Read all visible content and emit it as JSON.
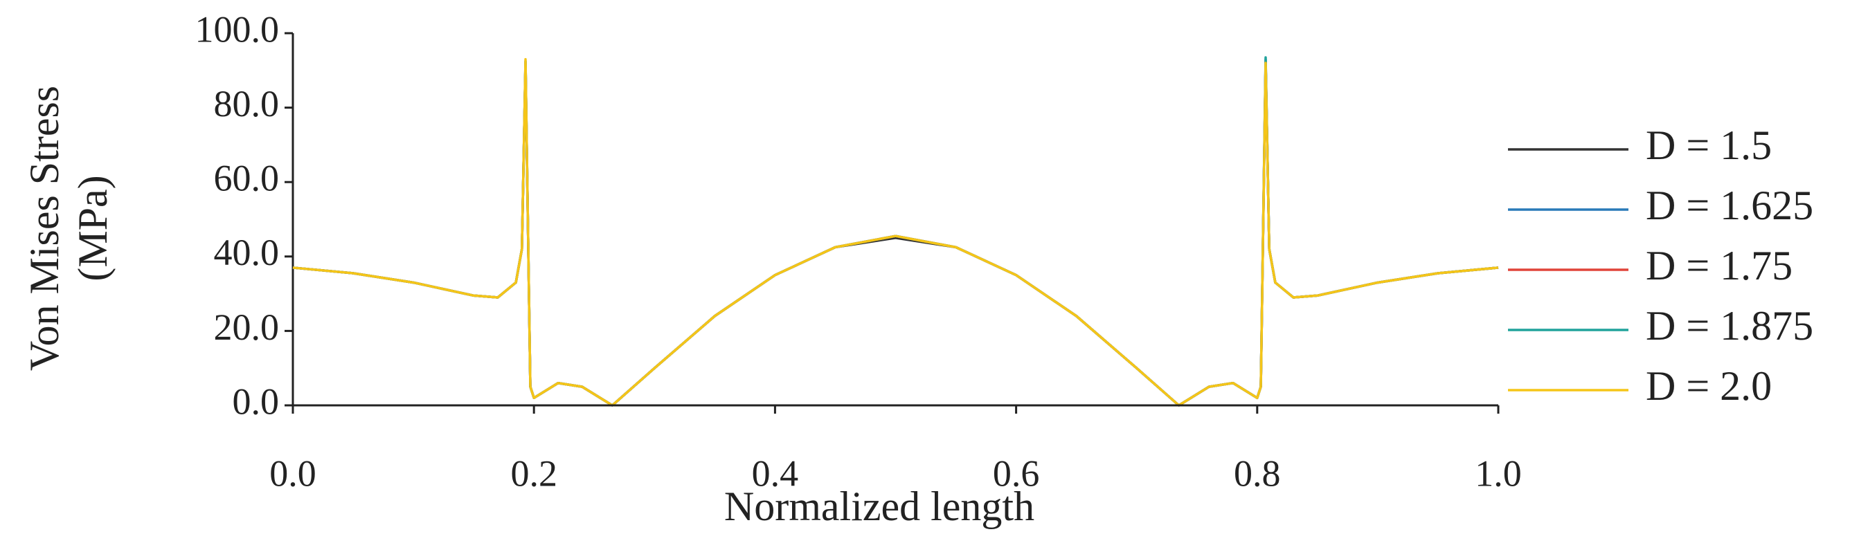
{
  "chart_data": {
    "type": "line",
    "ylabel": [
      "Von Mises Stress",
      "(MPa)"
    ],
    "xlabel": "Normalized length",
    "x": [
      0,
      0.05,
      0.1,
      0.15,
      0.17,
      0.185,
      0.19,
      0.193,
      0.197,
      0.2,
      0.22,
      0.24,
      0.265,
      0.3,
      0.35,
      0.4,
      0.45,
      0.5,
      0.55,
      0.6,
      0.65,
      0.7,
      0.735,
      0.76,
      0.78,
      0.8,
      0.803,
      0.807,
      0.81,
      0.815,
      0.83,
      0.85,
      0.9,
      0.95,
      1.0
    ],
    "series": [
      {
        "name": "D = 1.5",
        "color": "#333333",
        "values": [
          37,
          35.5,
          33,
          29.5,
          29,
          33,
          42,
          92,
          5,
          2,
          6,
          5,
          0,
          10,
          24,
          35,
          42.5,
          45,
          42.5,
          35,
          24,
          10,
          0,
          5,
          6,
          2,
          5,
          92,
          42,
          33,
          29,
          29.5,
          33,
          35.5,
          37
        ]
      },
      {
        "name": "D = 1.625",
        "color": "#2a7ab8",
        "values": [
          37,
          35.5,
          33,
          29.5,
          29,
          33,
          42,
          92.5,
          5,
          2,
          6,
          5,
          0,
          10,
          24,
          35,
          42.5,
          45.5,
          42.5,
          35,
          24,
          10,
          0,
          5,
          6,
          2,
          5,
          93,
          42,
          33,
          29,
          29.5,
          33,
          35.5,
          37
        ]
      },
      {
        "name": "D = 1.75",
        "color": "#e0443a",
        "values": [
          37,
          35.5,
          33,
          29.5,
          29,
          33,
          42,
          92,
          5,
          2,
          6,
          5,
          0,
          10,
          24,
          35,
          42.5,
          45.5,
          42.5,
          35,
          24,
          10,
          0,
          5,
          6,
          2,
          5,
          92.5,
          42,
          33,
          29,
          29.5,
          33,
          35.5,
          37
        ]
      },
      {
        "name": "D = 1.875",
        "color": "#21a39b",
        "values": [
          37,
          35.5,
          33,
          29.5,
          29,
          33,
          42,
          92.5,
          5,
          2,
          6,
          5,
          0,
          10,
          24,
          35,
          42.5,
          45.5,
          42.5,
          35,
          24,
          10,
          0,
          5,
          6,
          2,
          5,
          93.5,
          42,
          33,
          29,
          29.5,
          33,
          35.5,
          37
        ]
      },
      {
        "name": "D = 2.0",
        "color": "#f5c518",
        "values": [
          37,
          35.5,
          33,
          29.5,
          29,
          33,
          42,
          93,
          5,
          2,
          6,
          5,
          0,
          10,
          24,
          35,
          42.5,
          45.5,
          42.5,
          35,
          24,
          10,
          0,
          5,
          6,
          2,
          5,
          92,
          42,
          33,
          29,
          29.5,
          33,
          35.5,
          37
        ]
      }
    ],
    "xlim": [
      0,
      1
    ],
    "xticks": [
      {
        "value": 0,
        "label": "0.0"
      },
      {
        "value": 0.2,
        "label": "0.2"
      },
      {
        "value": 0.4,
        "label": "0.4"
      },
      {
        "value": 0.6,
        "label": "0.6"
      },
      {
        "value": 0.8,
        "label": "0.8"
      },
      {
        "value": 1,
        "label": "1.0"
      }
    ],
    "ylim": [
      0,
      100
    ],
    "yticks": [
      {
        "value": 0,
        "label": "0.0"
      },
      {
        "value": 20,
        "label": "20.0"
      },
      {
        "value": 40,
        "label": "40.0"
      },
      {
        "value": 60,
        "label": "60.0"
      },
      {
        "value": 80,
        "label": "80.0"
      },
      {
        "value": 100,
        "label": "100.0"
      }
    ],
    "grid": false,
    "legend": "right"
  }
}
